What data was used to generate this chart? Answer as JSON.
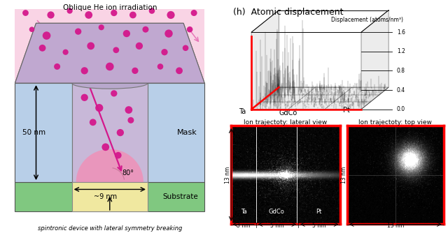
{
  "title_h": "(h)  Atomic displacement",
  "disp_ylabel": "Displacement (atoms/nm³)",
  "disp_yticks": [
    0.0,
    0.4,
    0.8,
    1.2,
    1.6
  ],
  "lateral_title": "Ion trajectoty: lateral view",
  "top_title": "Ion trajectoty: top view",
  "lateral_x_labels": [
    "3 nm",
    "5 nm",
    "5 nm"
  ],
  "lateral_y_label": "13 nm",
  "top_x_label": "13 nm",
  "top_y_label": "13 nm",
  "oblique_text": "Oblique He ion irradiation",
  "mask_text": "Mask",
  "substrate_text": "Substrate",
  "nm50_text": "50 nm",
  "nm9_text": "~9 nm",
  "angle_text": "80°",
  "caption": "spintronic device with lateral symmetry breaking",
  "pink_ion": "#d4188c",
  "light_blue": "#b8cfe8",
  "light_purple": "#c8b8d8",
  "pink_bg": "#f0c0d8",
  "green_sub": "#80c880",
  "yellow_inner": "#f0e8a0",
  "red_line": "#dd0000"
}
